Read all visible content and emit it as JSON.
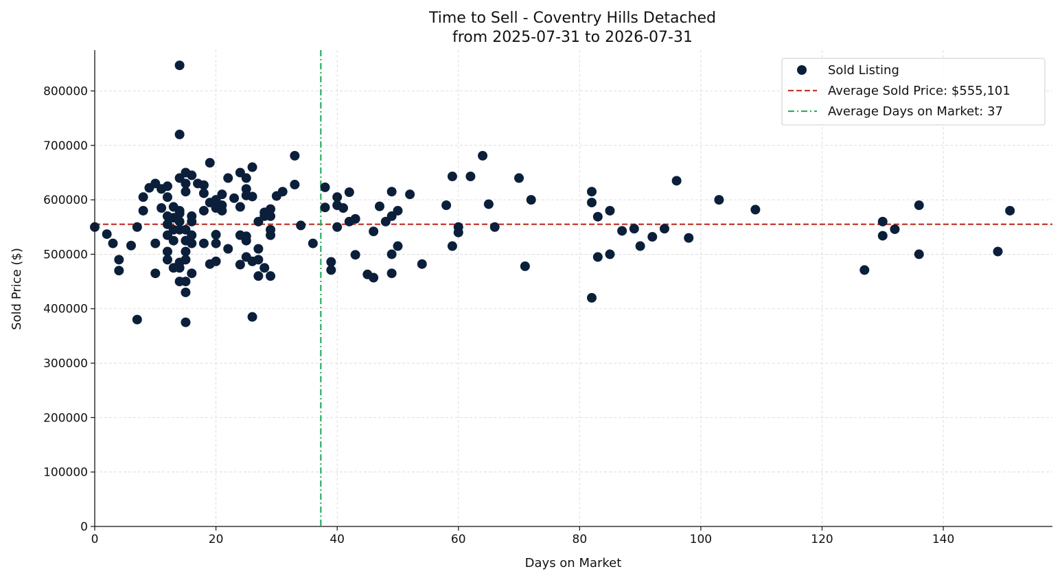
{
  "chart_data": {
    "type": "scatter",
    "title": "Time to Sell - Coventry Hills Detached",
    "subtitle": "from 2025-07-31 to 2026-07-31",
    "xlabel": "Days on Market",
    "ylabel": "Sold Price ($)",
    "xlim": [
      0,
      158
    ],
    "ylim": [
      0,
      875000
    ],
    "xticks": [
      0,
      20,
      40,
      60,
      80,
      100,
      120,
      140
    ],
    "yticks": [
      0,
      100000,
      200000,
      300000,
      400000,
      500000,
      600000,
      700000,
      800000
    ],
    "xtick_labels": [
      "0",
      "20",
      "40",
      "60",
      "80",
      "100",
      "120",
      "140"
    ],
    "ytick_labels": [
      "0",
      "100000",
      "200000",
      "300000",
      "400000",
      "500000",
      "600000",
      "700000",
      "800000"
    ],
    "grid": true,
    "legend_position": "top-right",
    "colors": {
      "points": "#0b1f3a",
      "avg_price": "#c0392b",
      "avg_days": "#27ae60"
    },
    "legend": [
      "Sold Listing",
      "Average Sold Price: $555,101",
      "Average Days on Market: 37"
    ],
    "avg_price": 555101,
    "avg_days": 37.3,
    "series": [
      {
        "name": "Sold Listing",
        "points": [
          [
            0,
            550000
          ],
          [
            2,
            537000
          ],
          [
            3,
            520000
          ],
          [
            4,
            490000
          ],
          [
            4,
            470000
          ],
          [
            6,
            516000
          ],
          [
            7,
            550000
          ],
          [
            7,
            380000
          ],
          [
            8,
            605000
          ],
          [
            8,
            580000
          ],
          [
            9,
            622000
          ],
          [
            10,
            630000
          ],
          [
            10,
            520000
          ],
          [
            10,
            465000
          ],
          [
            11,
            620000
          ],
          [
            11,
            585000
          ],
          [
            12,
            625000
          ],
          [
            12,
            605000
          ],
          [
            12,
            570000
          ],
          [
            12,
            555000
          ],
          [
            12,
            535000
          ],
          [
            12,
            505000
          ],
          [
            12,
            490000
          ],
          [
            13,
            587000
          ],
          [
            13,
            567000
          ],
          [
            13,
            545000
          ],
          [
            13,
            525000
          ],
          [
            13,
            475000
          ],
          [
            14,
            847000
          ],
          [
            14,
            720000
          ],
          [
            14,
            640000
          ],
          [
            14,
            580000
          ],
          [
            14,
            575000
          ],
          [
            14,
            560000
          ],
          [
            14,
            545000
          ],
          [
            14,
            485000
          ],
          [
            14,
            475000
          ],
          [
            14,
            450000
          ],
          [
            15,
            650000
          ],
          [
            15,
            630000
          ],
          [
            15,
            615000
          ],
          [
            15,
            545000
          ],
          [
            15,
            525000
          ],
          [
            15,
            505000
          ],
          [
            15,
            490000
          ],
          [
            15,
            450000
          ],
          [
            15,
            430000
          ],
          [
            15,
            375000
          ],
          [
            16,
            645000
          ],
          [
            16,
            570000
          ],
          [
            16,
            560000
          ],
          [
            16,
            535000
          ],
          [
            16,
            520000
          ],
          [
            16,
            465000
          ],
          [
            17,
            630000
          ],
          [
            18,
            627000
          ],
          [
            18,
            612000
          ],
          [
            18,
            580000
          ],
          [
            18,
            520000
          ],
          [
            19,
            668000
          ],
          [
            19,
            595000
          ],
          [
            19,
            482000
          ],
          [
            20,
            600000
          ],
          [
            20,
            585000
          ],
          [
            20,
            536000
          ],
          [
            20,
            520000
          ],
          [
            20,
            487000
          ],
          [
            21,
            610000
          ],
          [
            21,
            590000
          ],
          [
            21,
            580000
          ],
          [
            22,
            640000
          ],
          [
            22,
            510000
          ],
          [
            23,
            603000
          ],
          [
            24,
            650000
          ],
          [
            24,
            587000
          ],
          [
            24,
            535000
          ],
          [
            24,
            481000
          ],
          [
            25,
            640000
          ],
          [
            25,
            620000
          ],
          [
            25,
            608000
          ],
          [
            25,
            533000
          ],
          [
            25,
            525000
          ],
          [
            25,
            495000
          ],
          [
            26,
            660000
          ],
          [
            26,
            606000
          ],
          [
            26,
            487000
          ],
          [
            26,
            385000
          ],
          [
            27,
            560000
          ],
          [
            27,
            510000
          ],
          [
            27,
            490000
          ],
          [
            27,
            460000
          ],
          [
            28,
            577000
          ],
          [
            28,
            570000
          ],
          [
            28,
            475000
          ],
          [
            29,
            583000
          ],
          [
            29,
            570000
          ],
          [
            29,
            545000
          ],
          [
            29,
            535000
          ],
          [
            29,
            460000
          ],
          [
            30,
            607000
          ],
          [
            31,
            615000
          ],
          [
            33,
            681000
          ],
          [
            33,
            628000
          ],
          [
            34,
            553000
          ],
          [
            36,
            520000
          ],
          [
            38,
            623000
          ],
          [
            38,
            586000
          ],
          [
            39,
            486000
          ],
          [
            39,
            471000
          ],
          [
            40,
            605000
          ],
          [
            40,
            590000
          ],
          [
            40,
            550000
          ],
          [
            41,
            585000
          ],
          [
            42,
            614000
          ],
          [
            42,
            560000
          ],
          [
            43,
            565000
          ],
          [
            43,
            499000
          ],
          [
            45,
            463000
          ],
          [
            46,
            542000
          ],
          [
            46,
            457000
          ],
          [
            47,
            588000
          ],
          [
            48,
            560000
          ],
          [
            49,
            615000
          ],
          [
            49,
            570000
          ],
          [
            49,
            500000
          ],
          [
            49,
            465000
          ],
          [
            50,
            580000
          ],
          [
            50,
            515000
          ],
          [
            52,
            610000
          ],
          [
            54,
            482000
          ],
          [
            58,
            590000
          ],
          [
            59,
            643000
          ],
          [
            59,
            515000
          ],
          [
            60,
            550000
          ],
          [
            60,
            540000
          ],
          [
            62,
            643000
          ],
          [
            64,
            681000
          ],
          [
            65,
            592000
          ],
          [
            66,
            550000
          ],
          [
            70,
            640000
          ],
          [
            71,
            478000
          ],
          [
            72,
            600000
          ],
          [
            82,
            615000
          ],
          [
            82,
            595000
          ],
          [
            82,
            420000
          ],
          [
            83,
            569000
          ],
          [
            83,
            495000
          ],
          [
            85,
            580000
          ],
          [
            85,
            500000
          ],
          [
            87,
            543000
          ],
          [
            89,
            547000
          ],
          [
            90,
            515000
          ],
          [
            92,
            532000
          ],
          [
            94,
            547000
          ],
          [
            96,
            635000
          ],
          [
            98,
            530000
          ],
          [
            103,
            600000
          ],
          [
            109,
            582000
          ],
          [
            127,
            471000
          ],
          [
            130,
            560000
          ],
          [
            130,
            534000
          ],
          [
            132,
            546000
          ],
          [
            136,
            590000
          ],
          [
            136,
            500000
          ],
          [
            149,
            505000
          ],
          [
            151,
            580000
          ]
        ]
      }
    ]
  }
}
